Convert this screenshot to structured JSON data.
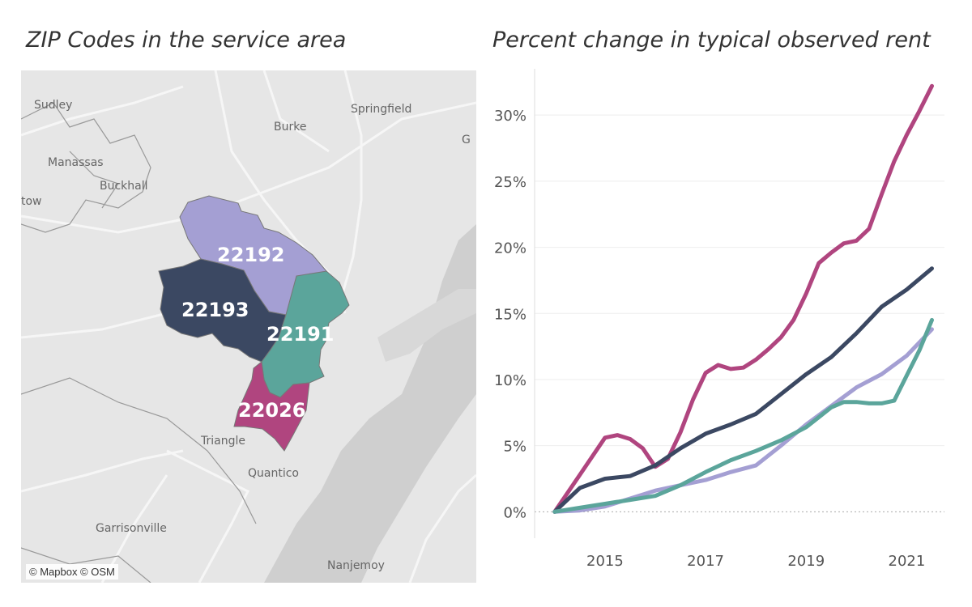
{
  "map": {
    "title": "ZIP Codes in the service area",
    "attribution": "© Mapbox © OSM",
    "places": [
      "Sudley",
      "Springfield",
      "Burke",
      "G",
      "Manassas",
      "Buckhall",
      "tow",
      "Triangle",
      "Quantico",
      "Garrisonville",
      "Nanjemoy"
    ],
    "zips": [
      {
        "label": "22192",
        "color": "#a49fd3"
      },
      {
        "label": "22193",
        "color": "#3b4862"
      },
      {
        "label": "22191",
        "color": "#5ba59b"
      },
      {
        "label": "22026",
        "color": "#b0457f"
      }
    ]
  },
  "chart_data": {
    "type": "line",
    "title": "Percent change in typical observed rent",
    "xlabel": "",
    "ylabel": "",
    "xlim": [
      2013.6,
      2021.75
    ],
    "ylim": [
      -2,
      33.5
    ],
    "x_ticks": [
      2015,
      2017,
      2019,
      2021
    ],
    "x_tick_labels": [
      "2015",
      "2017",
      "2019",
      "2021"
    ],
    "y_ticks": [
      0,
      5,
      10,
      15,
      20,
      25,
      30
    ],
    "y_tick_labels": [
      "0%",
      "5%",
      "10%",
      "15%",
      "20%",
      "25%",
      "30%"
    ],
    "series": [
      {
        "name": "22026",
        "color": "#b0457f",
        "x": [
          2014.0,
          2014.5,
          2015.0,
          2015.25,
          2015.5,
          2015.75,
          2016.0,
          2016.25,
          2016.5,
          2016.75,
          2017.0,
          2017.25,
          2017.5,
          2017.75,
          2018.0,
          2018.25,
          2018.5,
          2018.75,
          2019.0,
          2019.25,
          2019.5,
          2019.75,
          2020.0,
          2020.25,
          2020.5,
          2020.75,
          2021.0,
          2021.25,
          2021.5
        ],
        "values": [
          0,
          2.8,
          5.6,
          5.8,
          5.5,
          4.8,
          3.4,
          4.0,
          6.0,
          8.5,
          10.5,
          11.1,
          10.8,
          10.9,
          11.5,
          12.3,
          13.2,
          14.5,
          16.5,
          18.8,
          19.6,
          20.3,
          20.5,
          21.4,
          24.0,
          26.5,
          28.5,
          30.3,
          32.2
        ]
      },
      {
        "name": "22193",
        "color": "#3b4862",
        "x": [
          2014.0,
          2014.5,
          2015.0,
          2015.5,
          2016.0,
          2016.5,
          2017.0,
          2017.5,
          2018.0,
          2018.5,
          2019.0,
          2019.5,
          2020.0,
          2020.5,
          2021.0,
          2021.5
        ],
        "values": [
          0,
          1.8,
          2.5,
          2.7,
          3.5,
          4.8,
          5.9,
          6.6,
          7.4,
          8.9,
          10.4,
          11.7,
          13.5,
          15.5,
          16.8,
          18.4
        ]
      },
      {
        "name": "22192",
        "color": "#a49fd3",
        "x": [
          2014.0,
          2014.5,
          2015.0,
          2015.5,
          2016.0,
          2016.5,
          2017.0,
          2017.5,
          2018.0,
          2018.5,
          2019.0,
          2019.5,
          2020.0,
          2020.5,
          2021.0,
          2021.5
        ],
        "values": [
          0,
          0.1,
          0.4,
          1.0,
          1.6,
          2.0,
          2.4,
          3.0,
          3.5,
          5.0,
          6.6,
          8.0,
          9.4,
          10.4,
          11.8,
          13.8
        ]
      },
      {
        "name": "22191",
        "color": "#5ba59b",
        "x": [
          2014.0,
          2014.5,
          2015.0,
          2015.5,
          2016.0,
          2016.5,
          2017.0,
          2017.5,
          2018.0,
          2018.5,
          2019.0,
          2019.5,
          2019.75,
          2020.0,
          2020.25,
          2020.5,
          2020.75,
          2021.0,
          2021.25,
          2021.5
        ],
        "values": [
          0,
          0.3,
          0.6,
          0.9,
          1.2,
          2.0,
          3.0,
          3.9,
          4.6,
          5.4,
          6.4,
          7.9,
          8.3,
          8.3,
          8.2,
          8.2,
          8.4,
          10.3,
          12.2,
          14.5
        ]
      }
    ]
  }
}
